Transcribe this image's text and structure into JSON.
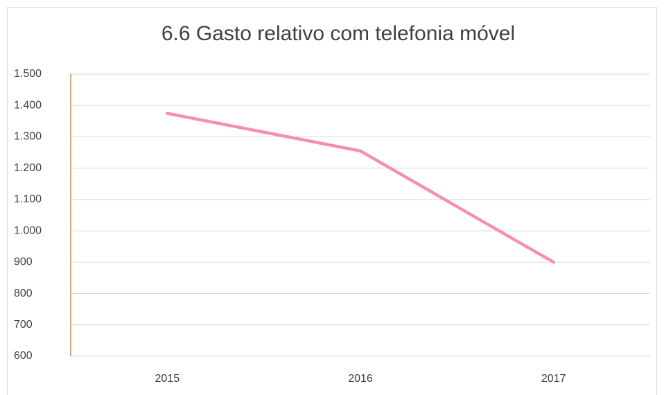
{
  "chart_data": {
    "type": "line",
    "title": "6.6 Gasto relativo com telefonia móvel",
    "categories": [
      "2015",
      "2016",
      "2017"
    ],
    "values": [
      1375,
      1255,
      900
    ],
    "color": "#f490ab",
    "ylim": [
      600,
      1500
    ],
    "yticks": [
      600,
      700,
      800,
      900,
      {
        "value": 1000,
        "label": "1.000"
      },
      {
        "value": 1100,
        "label": "1.100"
      },
      {
        "value": 1200,
        "label": "1.200"
      },
      {
        "value": 1300,
        "label": "1.300"
      },
      {
        "value": 1400,
        "label": "1.400"
      },
      {
        "value": 1500,
        "label": "1.500"
      }
    ],
    "grid": true
  }
}
